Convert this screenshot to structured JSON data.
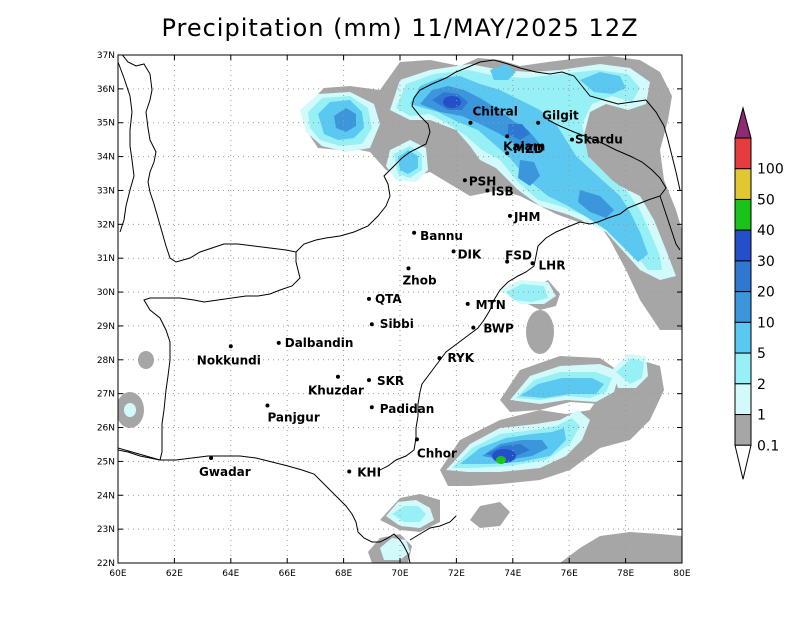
{
  "title": "Precipitation (mm) 11/MAY/2025 12Z",
  "colors": {
    "c01": "#a6a6a6",
    "c1": "#d2fafa",
    "c2": "#96f0f5",
    "c5": "#5ac8f0",
    "c10": "#3c96dc",
    "c20": "#2e78d2",
    "c30": "#2350c8",
    "c40": "#19c319",
    "c50": "#e1c832",
    "c100": "#e63c3c",
    "cmax": "#8c2a73",
    "border": "#000000",
    "grid": "#9a9a9a"
  },
  "axes": {
    "lon_ticks": [
      "60E",
      "62E",
      "64E",
      "66E",
      "68E",
      "70E",
      "72E",
      "74E",
      "76E",
      "78E",
      "80E"
    ],
    "lat_ticks": [
      "22N",
      "23N",
      "24N",
      "25N",
      "26N",
      "27N",
      "28N",
      "29N",
      "30N",
      "31N",
      "32N",
      "33N",
      "34N",
      "35N",
      "36N",
      "37N"
    ]
  },
  "colorbar": {
    "levels": [
      "0.1",
      "1",
      "2",
      "5",
      "10",
      "20",
      "30",
      "40",
      "50",
      "100"
    ]
  },
  "cities": [
    {
      "name": "Chitral",
      "lon": 72.5,
      "lat": 35.0
    },
    {
      "name": "Gilgit",
      "lon": 74.9,
      "lat": 35.0
    },
    {
      "name": "Kalam",
      "lon": 73.8,
      "lat": 34.6
    },
    {
      "name": "Skardu",
      "lon": 76.1,
      "lat": 34.5
    },
    {
      "name": "MZD",
      "lon": 73.8,
      "lat": 34.1
    },
    {
      "name": "PSH",
      "lon": 72.3,
      "lat": 33.3
    },
    {
      "name": "ISB",
      "lon": 73.1,
      "lat": 33.0
    },
    {
      "name": "JHM",
      "lon": 73.9,
      "lat": 32.25
    },
    {
      "name": "Bannu",
      "lon": 70.5,
      "lat": 31.75
    },
    {
      "name": "DIK",
      "lon": 71.9,
      "lat": 31.2
    },
    {
      "name": "FSD",
      "lon": 73.8,
      "lat": 30.9
    },
    {
      "name": "LHR",
      "lon": 74.7,
      "lat": 30.85
    },
    {
      "name": "Zhob",
      "lon": 70.3,
      "lat": 30.7
    },
    {
      "name": "QTA",
      "lon": 68.9,
      "lat": 29.8
    },
    {
      "name": "MTN",
      "lon": 72.4,
      "lat": 29.65
    },
    {
      "name": "Sibbi",
      "lon": 69.0,
      "lat": 29.05
    },
    {
      "name": "BWP",
      "lon": 72.6,
      "lat": 28.95
    },
    {
      "name": "Dalbandin",
      "lon": 65.7,
      "lat": 28.5
    },
    {
      "name": "Nokkundi",
      "lon": 64.0,
      "lat": 28.4
    },
    {
      "name": "RYK",
      "lon": 71.4,
      "lat": 28.05
    },
    {
      "name": "Khuzdar",
      "lon": 67.8,
      "lat": 27.5
    },
    {
      "name": "SKR",
      "lon": 68.9,
      "lat": 27.4
    },
    {
      "name": "Padidan",
      "lon": 69.0,
      "lat": 26.6
    },
    {
      "name": "Panjgur",
      "lon": 65.3,
      "lat": 26.65
    },
    {
      "name": "Chhor",
      "lon": 70.6,
      "lat": 25.65
    },
    {
      "name": "KHI",
      "lon": 68.2,
      "lat": 24.7
    },
    {
      "name": "Gwadar",
      "lon": 63.3,
      "lat": 25.1
    }
  ]
}
